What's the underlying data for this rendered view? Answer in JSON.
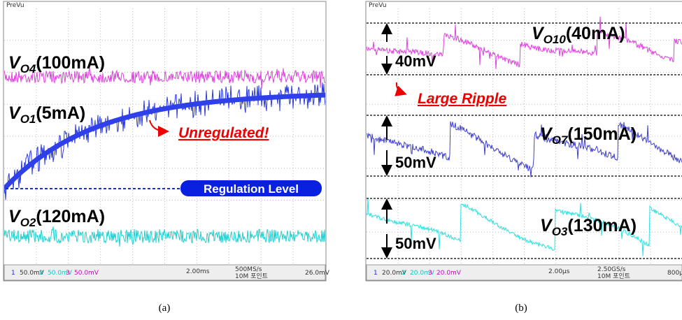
{
  "panel_a": {
    "brand": "PreVu",
    "labels": [
      {
        "v": "V",
        "sub": "O4",
        "rest": "(100mA)"
      },
      {
        "v": "V",
        "sub": "O1",
        "rest": "(5mA)"
      },
      {
        "v": "V",
        "sub": "O2",
        "rest": "(120mA)"
      }
    ],
    "annotation": "Unregulated!",
    "regulation": "Regulation Level",
    "status": [
      "1",
      "50.0mV",
      "2",
      "50.0mV",
      "3",
      "50.0mV",
      "2.00ms",
      "500MS/s",
      "10M 포인트",
      "26.0mV"
    ],
    "caption": "(a)"
  },
  "panel_b": {
    "brand": "PreVu",
    "labels": [
      {
        "v": "V",
        "sub": "O10",
        "rest": "(40mA)"
      },
      {
        "v": "V",
        "sub": "O7",
        "rest": "(150mA)"
      },
      {
        "v": "V",
        "sub": "O3",
        "rest": "(130mA)"
      }
    ],
    "ripples": [
      "40mV",
      "50mV",
      "50mV"
    ],
    "annotation": "Large Ripple",
    "status": [
      "1",
      "20.0mV",
      "2",
      "20.0mV",
      "3",
      "20.0mV",
      "2.00µs",
      "2.50GS/s",
      "10M 포인트",
      "800µ"
    ],
    "caption": "(b)"
  }
}
